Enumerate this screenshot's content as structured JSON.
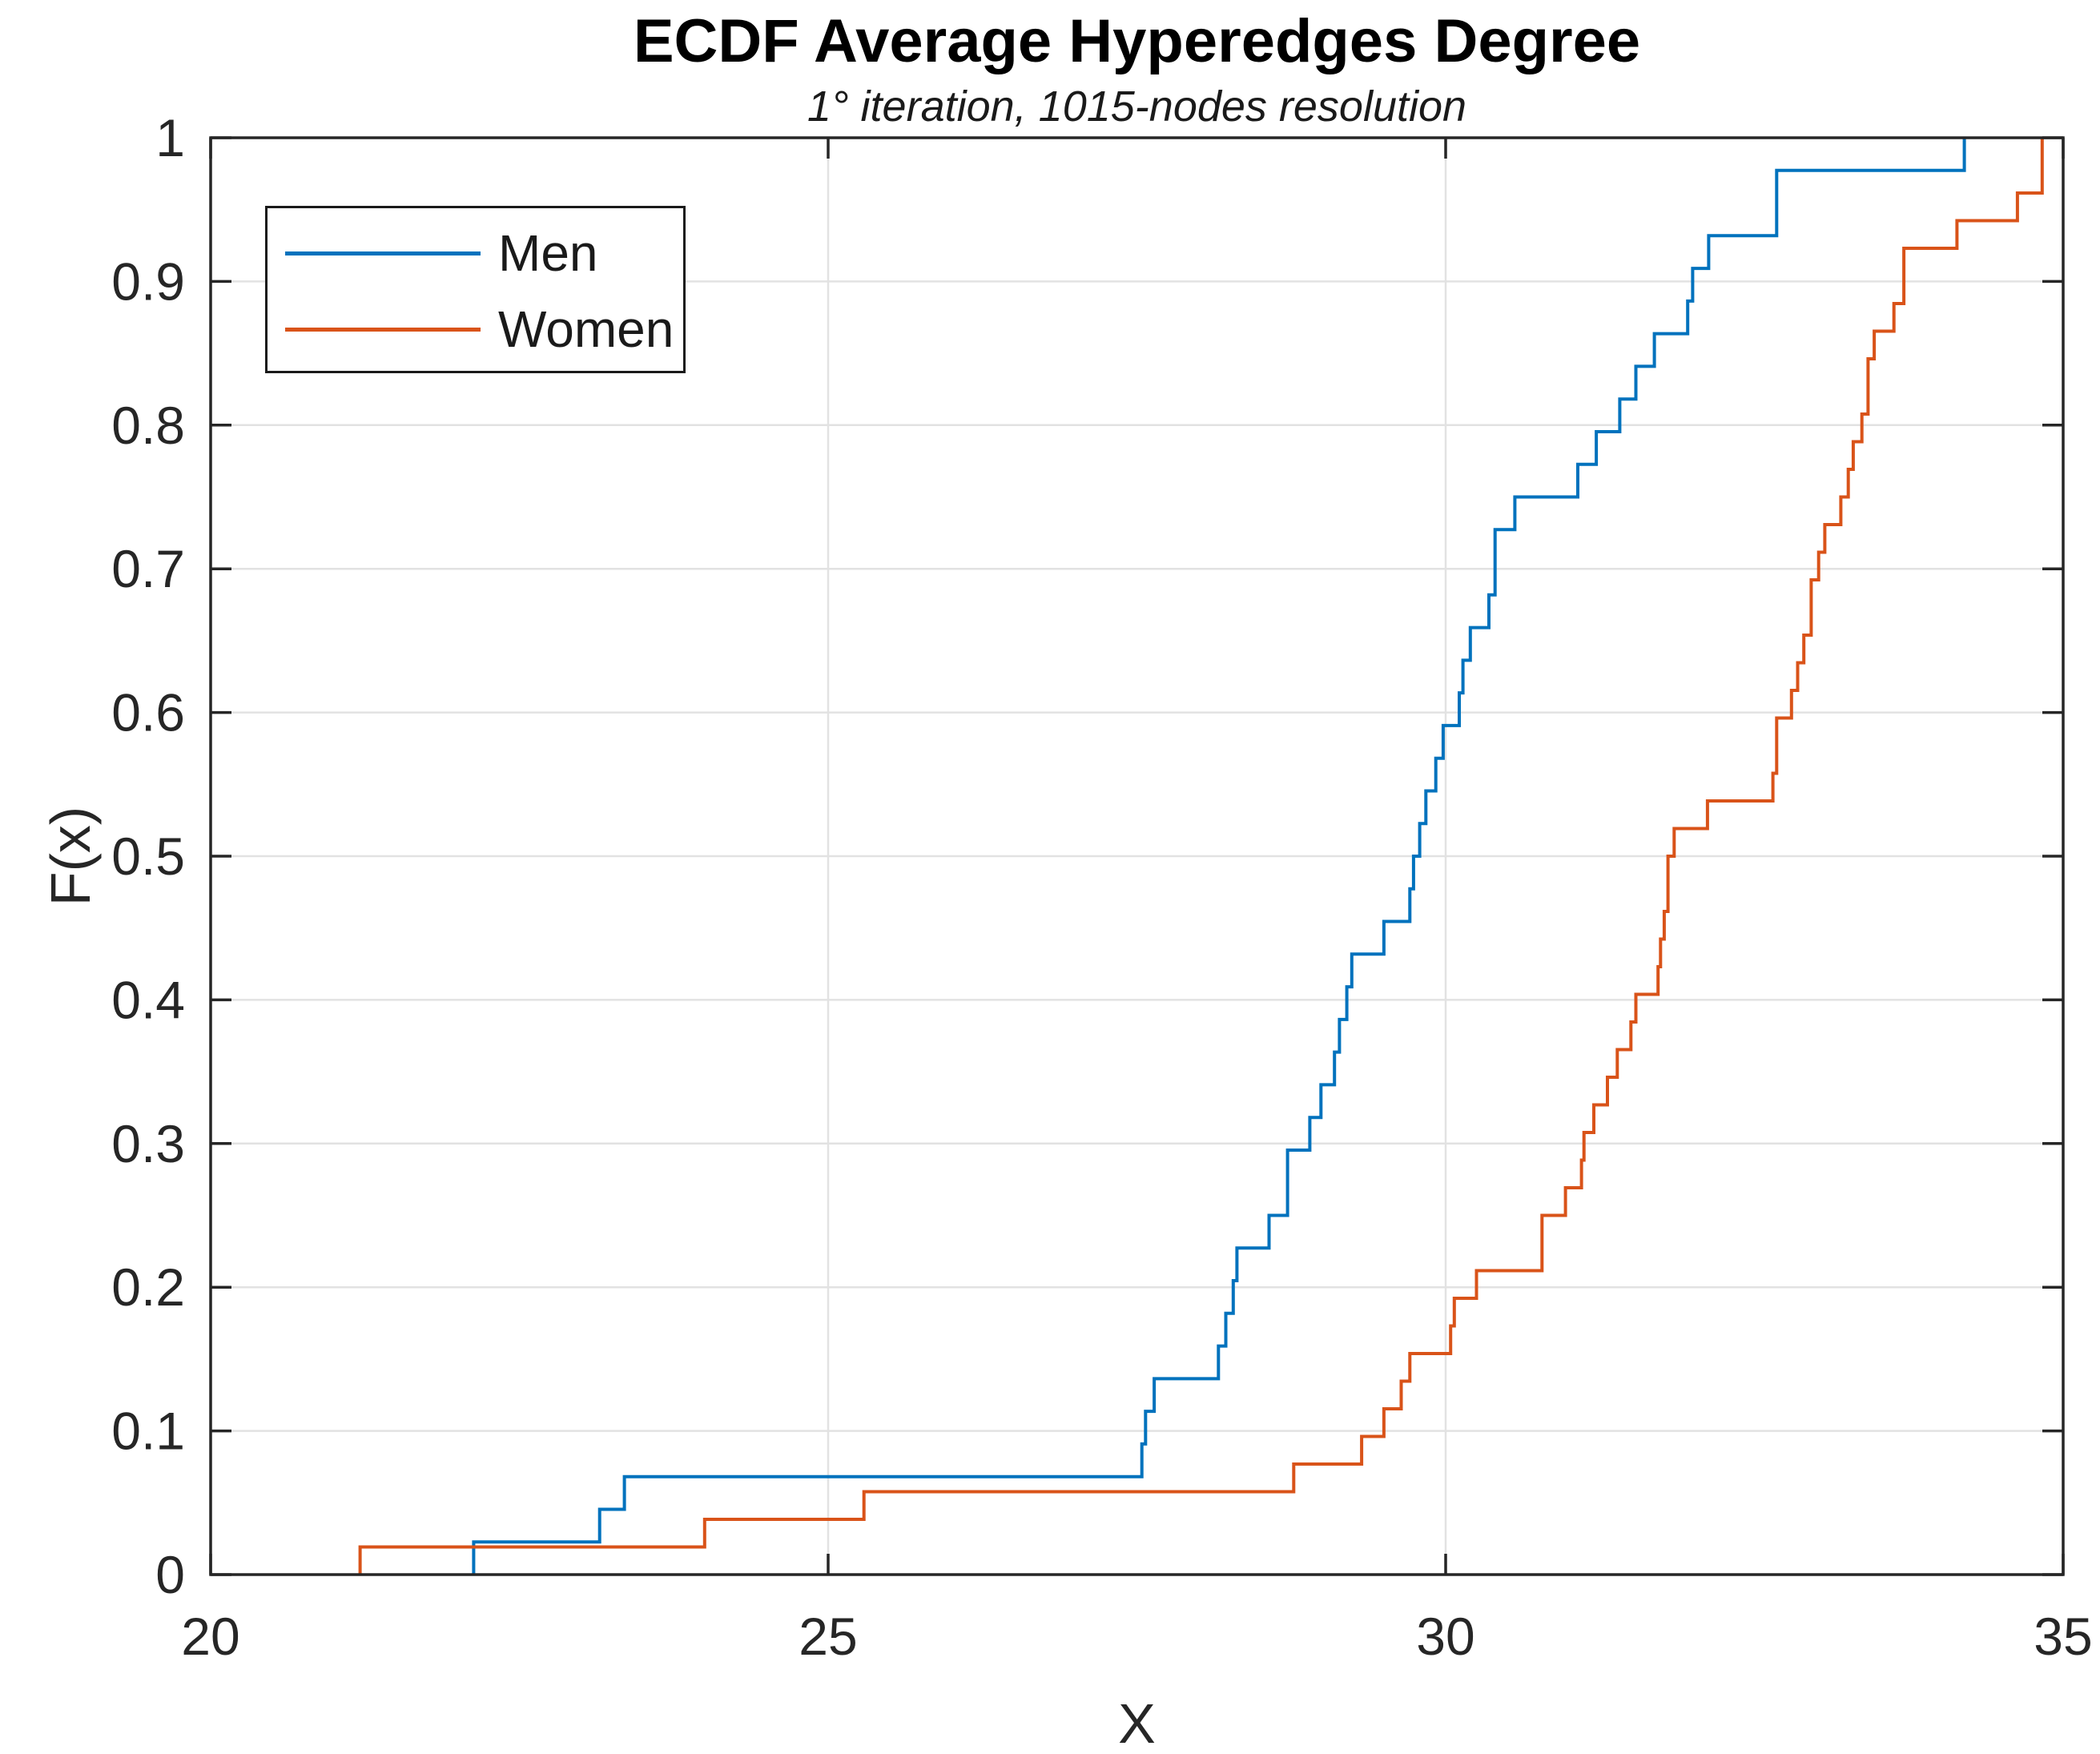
{
  "chart_data": {
    "type": "line",
    "variant": "ecdf-stairs",
    "title": "ECDF Average Hyperedges Degree",
    "subtitle": "1° iteration, 1015-nodes resolution",
    "xlabel": "X",
    "ylabel": "F(x)",
    "xlim": [
      20,
      35
    ],
    "ylim": [
      0,
      1
    ],
    "x_ticks": [
      20,
      25,
      30,
      35
    ],
    "x_tick_labels": [
      "20",
      "25",
      "30",
      "35"
    ],
    "y_ticks": [
      0,
      0.1,
      0.2,
      0.3,
      0.4,
      0.5,
      0.6,
      0.7,
      0.8,
      0.9,
      1
    ],
    "y_tick_labels": [
      "0",
      "0.1",
      "0.2",
      "0.3",
      "0.4",
      "0.5",
      "0.6",
      "0.7",
      "0.8",
      "0.9",
      "1"
    ],
    "grid": true,
    "legend_position": "top-left",
    "colors": {
      "axis": "#262626",
      "grid": "#e2e2e2",
      "background": "#ffffff",
      "title": "#000000",
      "men": "#0072BD",
      "women": "#D95319"
    },
    "series": [
      {
        "name": "Men",
        "color": "#0072BD",
        "n": 44,
        "samples": [
          22.13,
          23.15,
          23.35,
          27.54,
          27.57,
          27.64,
          28.16,
          28.22,
          28.28,
          28.31,
          28.57,
          28.72,
          28.72,
          28.9,
          28.99,
          29.1,
          29.14,
          29.2,
          29.24,
          29.5,
          29.71,
          29.74,
          29.79,
          29.84,
          29.92,
          29.98,
          30.11,
          30.14,
          30.2,
          30.35,
          30.4,
          30.4,
          30.56,
          31.07,
          31.22,
          31.41,
          31.54,
          31.69,
          31.96,
          32.0,
          32.13,
          32.68,
          32.68,
          34.2
        ]
      },
      {
        "name": "Women",
        "color": "#D95319",
        "n": 52,
        "samples": [
          21.21,
          24.0,
          25.29,
          28.77,
          29.32,
          29.5,
          29.64,
          29.71,
          30.04,
          30.07,
          30.25,
          30.78,
          30.78,
          30.97,
          31.1,
          31.12,
          31.2,
          31.31,
          31.39,
          31.5,
          31.54,
          31.72,
          31.74,
          31.77,
          31.8,
          31.8,
          31.85,
          32.12,
          32.65,
          32.68,
          32.68,
          32.8,
          32.85,
          32.9,
          32.96,
          32.96,
          33.02,
          33.07,
          33.2,
          33.26,
          33.3,
          33.37,
          33.42,
          33.42,
          33.47,
          33.63,
          33.71,
          33.71,
          34.14,
          34.63,
          34.83,
          34.83
        ]
      }
    ]
  }
}
